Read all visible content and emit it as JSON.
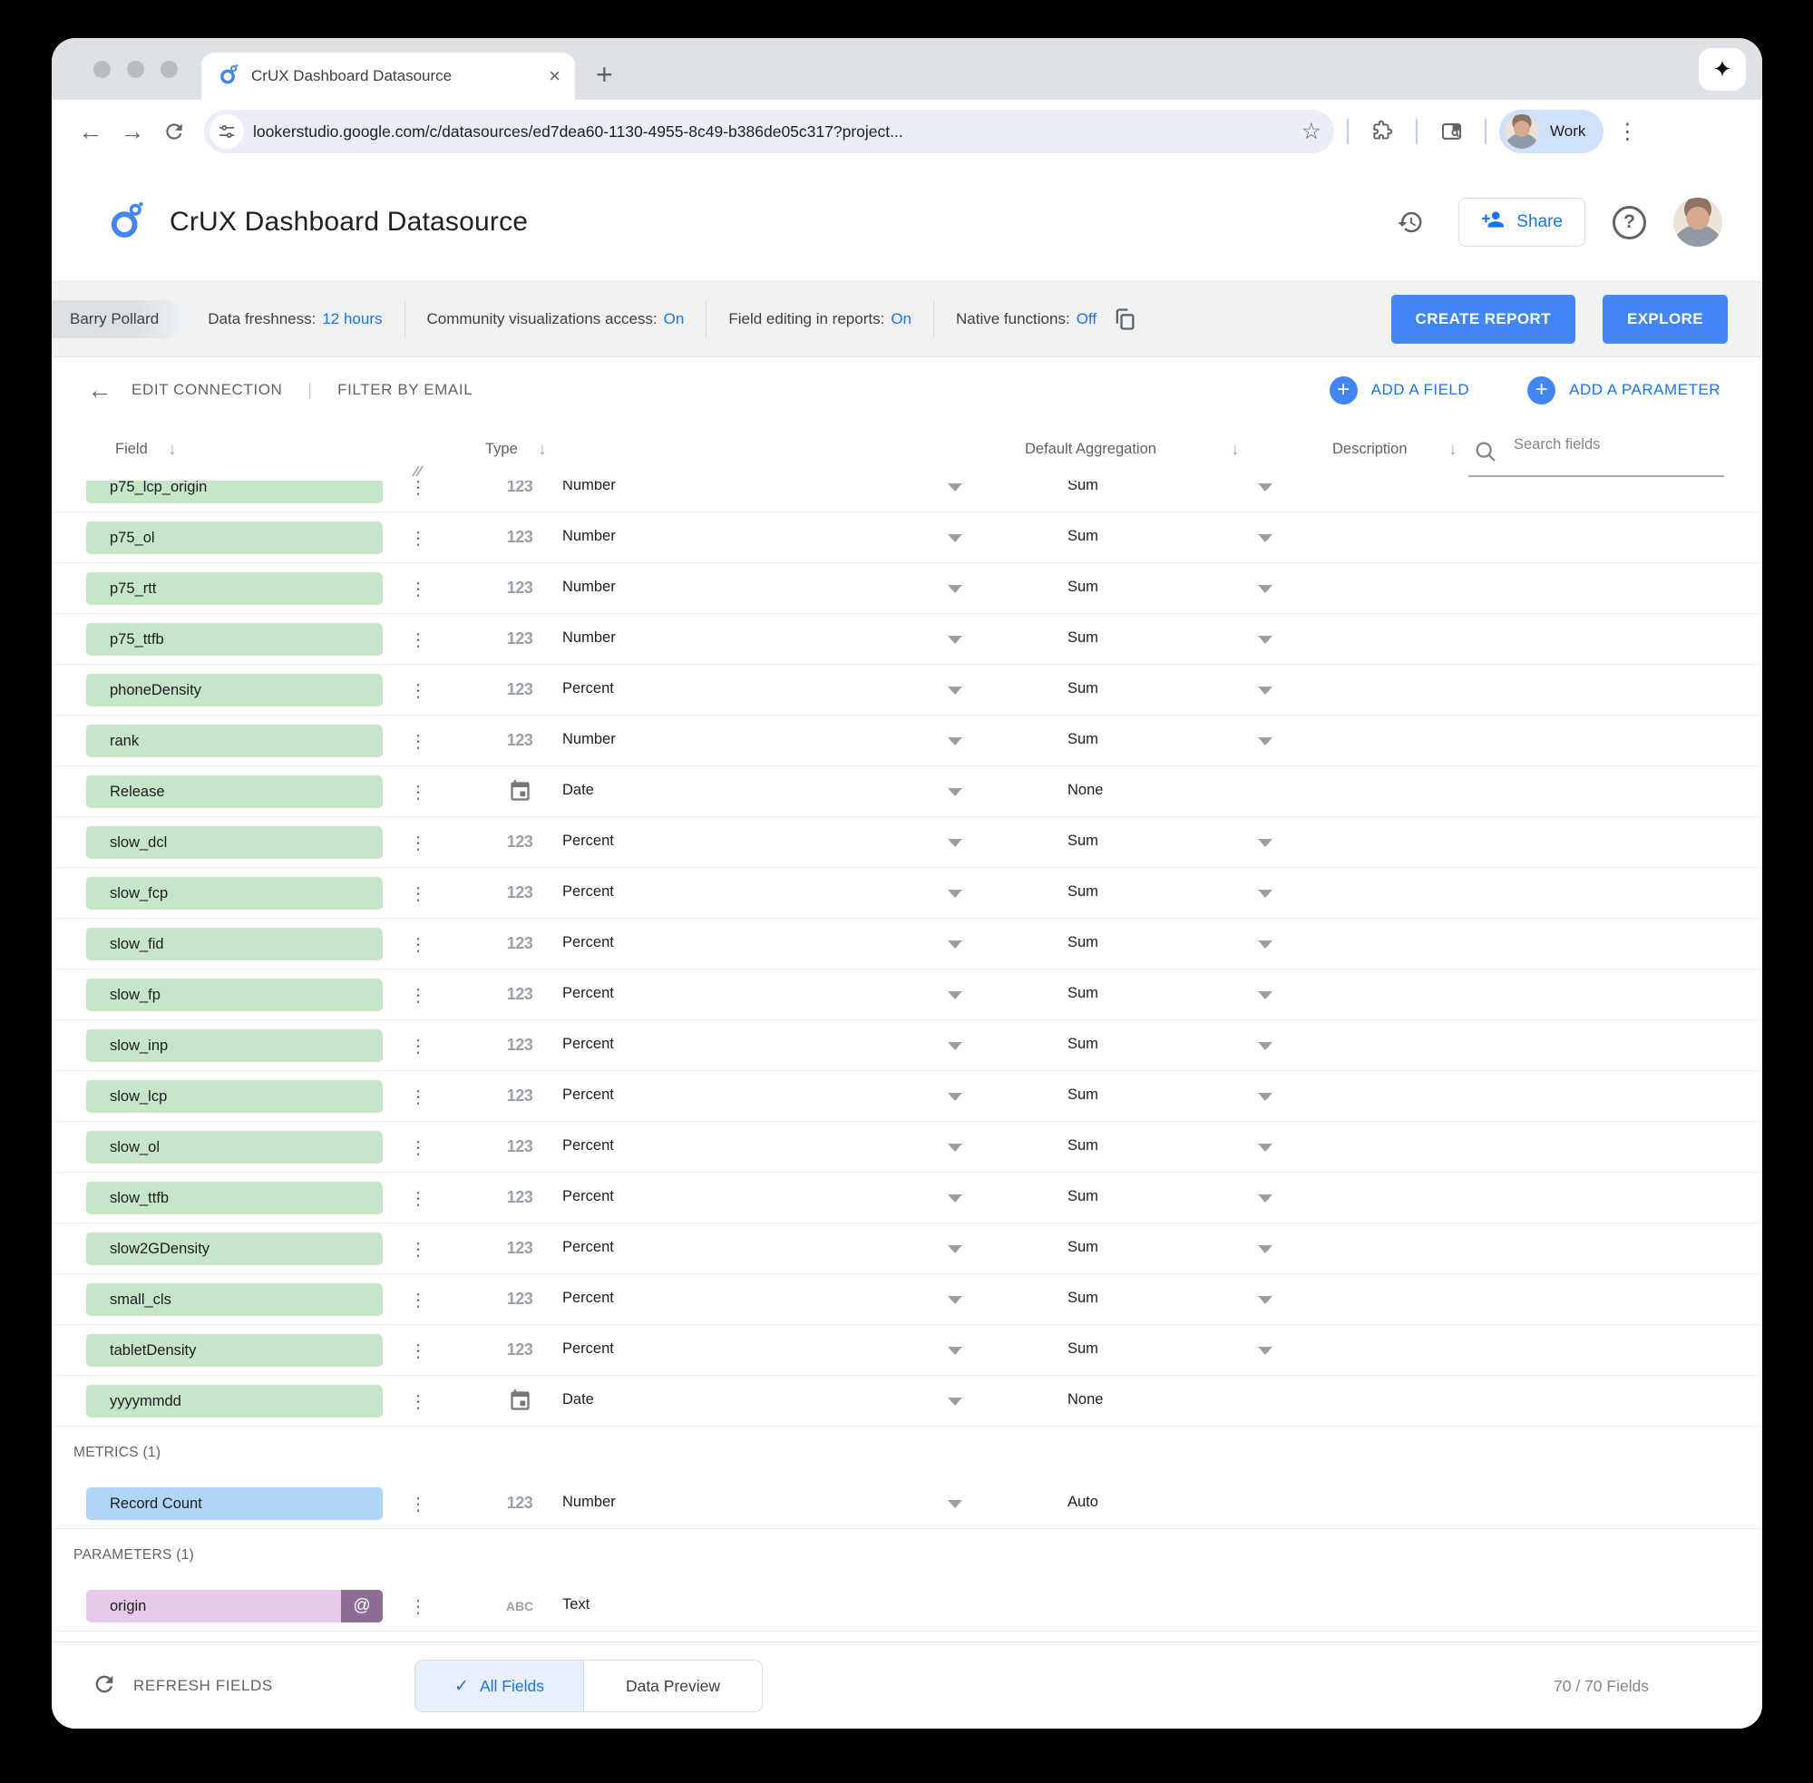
{
  "browser": {
    "tab_title": "CrUX Dashboard Datasource",
    "url": "lookerstudio.google.com/c/datasources/ed7dea60-1130-4955-8c49-b386de05c317?project...",
    "profile_label": "Work"
  },
  "header": {
    "title": "CrUX Dashboard Datasource",
    "share_label": "Share"
  },
  "statusbar": {
    "owner": "Barry Pollard",
    "freshness_label": "Data freshness:",
    "freshness_value": "12 hours",
    "community_label": "Community visualizations access:",
    "community_value": "On",
    "editing_label": "Field editing in reports:",
    "editing_value": "On",
    "native_label": "Native functions:",
    "native_value": "Off",
    "create_report_label": "CREATE REPORT",
    "explore_label": "EXPLORE"
  },
  "actionbar": {
    "edit_connection": "EDIT CONNECTION",
    "filter_by_email": "FILTER BY EMAIL",
    "add_field": "ADD A FIELD",
    "add_parameter": "ADD A PARAMETER"
  },
  "table": {
    "columns": {
      "field": "Field",
      "type": "Type",
      "aggregation": "Default Aggregation",
      "description": "Description"
    },
    "search_placeholder": "Search fields",
    "rows": [
      {
        "name": "p75_lcp_origin",
        "chip": "green",
        "icon": "123",
        "type": "Number",
        "agg": "Sum",
        "agg_caret": true,
        "clipped": true
      },
      {
        "name": "p75_ol",
        "chip": "green",
        "icon": "123",
        "type": "Number",
        "agg": "Sum",
        "agg_caret": true
      },
      {
        "name": "p75_rtt",
        "chip": "green",
        "icon": "123",
        "type": "Number",
        "agg": "Sum",
        "agg_caret": true
      },
      {
        "name": "p75_ttfb",
        "chip": "green",
        "icon": "123",
        "type": "Number",
        "agg": "Sum",
        "agg_caret": true
      },
      {
        "name": "phoneDensity",
        "chip": "green",
        "icon": "123",
        "type": "Percent",
        "agg": "Sum",
        "agg_caret": true
      },
      {
        "name": "rank",
        "chip": "green",
        "icon": "123",
        "type": "Number",
        "agg": "Sum",
        "agg_caret": true
      },
      {
        "name": "Release",
        "chip": "green",
        "icon": "date",
        "type": "Date",
        "agg": "None",
        "agg_caret": false
      },
      {
        "name": "slow_dcl",
        "chip": "green",
        "icon": "123",
        "type": "Percent",
        "agg": "Sum",
        "agg_caret": true
      },
      {
        "name": "slow_fcp",
        "chip": "green",
        "icon": "123",
        "type": "Percent",
        "agg": "Sum",
        "agg_caret": true
      },
      {
        "name": "slow_fid",
        "chip": "green",
        "icon": "123",
        "type": "Percent",
        "agg": "Sum",
        "agg_caret": true
      },
      {
        "name": "slow_fp",
        "chip": "green",
        "icon": "123",
        "type": "Percent",
        "agg": "Sum",
        "agg_caret": true
      },
      {
        "name": "slow_inp",
        "chip": "green",
        "icon": "123",
        "type": "Percent",
        "agg": "Sum",
        "agg_caret": true
      },
      {
        "name": "slow_lcp",
        "chip": "green",
        "icon": "123",
        "type": "Percent",
        "agg": "Sum",
        "agg_caret": true
      },
      {
        "name": "slow_ol",
        "chip": "green",
        "icon": "123",
        "type": "Percent",
        "agg": "Sum",
        "agg_caret": true
      },
      {
        "name": "slow_ttfb",
        "chip": "green",
        "icon": "123",
        "type": "Percent",
        "agg": "Sum",
        "agg_caret": true
      },
      {
        "name": "slow2GDensity",
        "chip": "green",
        "icon": "123",
        "type": "Percent",
        "agg": "Sum",
        "agg_caret": true
      },
      {
        "name": "small_cls",
        "chip": "green",
        "icon": "123",
        "type": "Percent",
        "agg": "Sum",
        "agg_caret": true
      },
      {
        "name": "tabletDensity",
        "chip": "green",
        "icon": "123",
        "type": "Percent",
        "agg": "Sum",
        "agg_caret": true
      },
      {
        "name": "yyyymmdd",
        "chip": "green",
        "icon": "date",
        "type": "Date",
        "agg": "None",
        "agg_caret": false
      }
    ],
    "metrics_header": "METRICS (1)",
    "metrics": [
      {
        "name": "Record Count",
        "chip": "blue",
        "icon": "123",
        "type": "Number",
        "agg": "Auto",
        "agg_caret": false
      }
    ],
    "parameters_header": "PARAMETERS (1)",
    "parameters": [
      {
        "name": "origin",
        "chip": "purple",
        "badge": "@",
        "icon": "ABC",
        "type": "Text",
        "type_caret": false,
        "agg": "",
        "agg_caret": false
      }
    ]
  },
  "footer": {
    "refresh_label": "REFRESH FIELDS",
    "tab_all": "All Fields",
    "tab_preview": "Data Preview",
    "fields_count": "70 / 70 Fields"
  },
  "colors": {
    "accent_blue": "#1a73e8",
    "button_blue": "#4285f4",
    "dimension_green": "#c7e5c8",
    "metric_blue": "#afd6f6",
    "parameter_purple": "#e6cbe9",
    "parameter_badge": "#8d6c96",
    "selected_tab_bg": "#e8f0fe",
    "tabstrip_gray": "#dee1e6",
    "toolbar_gray": "#f0f2f4"
  }
}
